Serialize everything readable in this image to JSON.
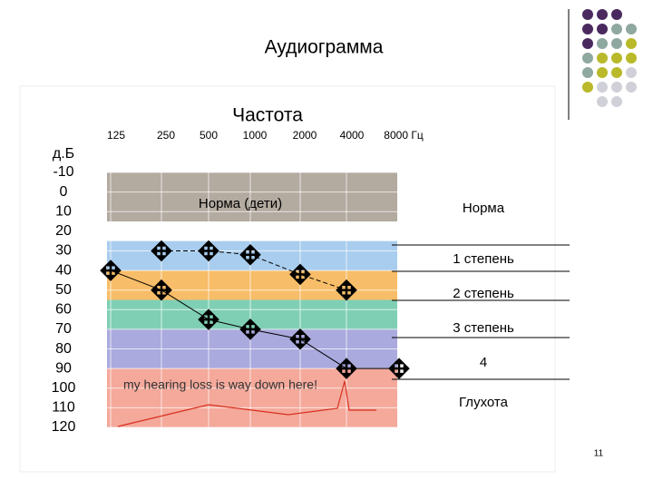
{
  "chart_data": {
    "type": "line",
    "title": "Аудиограмма",
    "x_label": "Частота",
    "y_label": "д.Б",
    "categories": [
      "125",
      "250",
      "500",
      "1000",
      "2000",
      "4000",
      "8000 Гц"
    ],
    "series": [
      {
        "color": "#000000",
        "dashed": true,
        "values": [
          null,
          30,
          30,
          32,
          42,
          50,
          null
        ]
      },
      {
        "color": "#000000",
        "dashed": false,
        "values": [
          40,
          50,
          65,
          70,
          75,
          90,
          90
        ]
      }
    ],
    "ylim": [
      -10,
      120
    ],
    "yticks": [
      -10,
      0,
      10,
      20,
      30,
      40,
      50,
      60,
      70,
      80,
      90,
      100,
      110,
      120
    ],
    "y_reversed": true,
    "bands": [
      {
        "label": "Норма (дети)",
        "from": -10,
        "to": 15,
        "color": "#b3aaa0"
      },
      {
        "from": 25,
        "to": 40,
        "color": "#a9cdee"
      },
      {
        "from": 40,
        "to": 55,
        "color": "#f8bd68"
      },
      {
        "from": 55,
        "to": 70,
        "color": "#7fcfb5"
      },
      {
        "from": 70,
        "to": 90,
        "color": "#aaaade"
      },
      {
        "from": 90,
        "to": 120,
        "color": "#f4a99b"
      }
    ],
    "zones": [
      "Норма",
      "1 степень",
      "2 степень",
      "3 степень",
      "4",
      "Глухота"
    ],
    "annotation": "my hearing loss is way down here!",
    "page_number": "11"
  }
}
